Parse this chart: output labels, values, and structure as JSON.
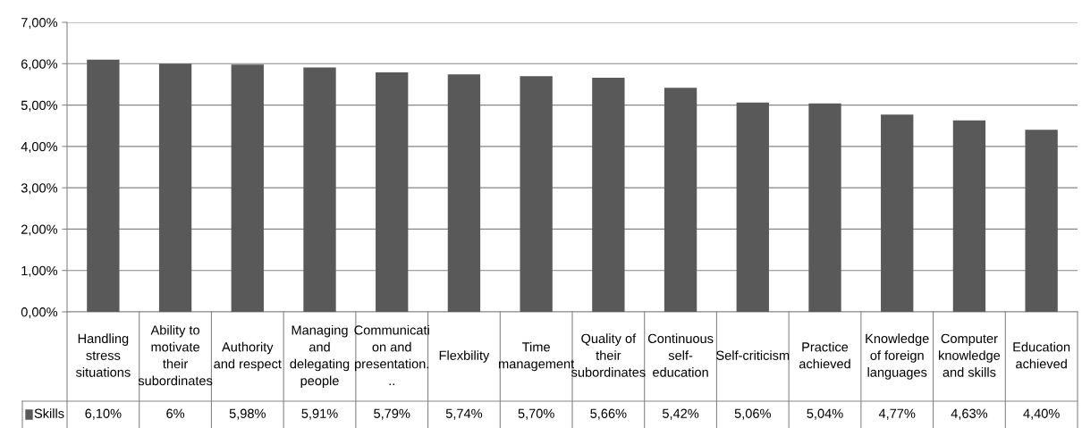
{
  "chart_data": {
    "type": "bar",
    "categories": [
      "Handling\nstress\nsituations",
      "Ability to\nmotivate\ntheir\nsubordinates",
      "Authority\nand respect",
      "Managing\nand\ndelegating\npeople",
      "Communicati\non and\npresentation.\n..",
      "Flexbility",
      "Time\nmanagement",
      "Quality of\ntheir\nsubordinates",
      "Continuous\nself-\neducation",
      "Self-criticism",
      "Practice\nachieved",
      "Knowledge\nof foreign\nlanguages",
      "Computer\nknowledge\nand skills",
      "Education\nachieved"
    ],
    "series": [
      {
        "name": "Skills",
        "color": "#595959",
        "values": [
          6.1,
          6.0,
          5.98,
          5.91,
          5.79,
          5.74,
          5.7,
          5.66,
          5.42,
          5.06,
          5.04,
          4.77,
          4.63,
          4.4
        ],
        "value_labels": [
          "6,10%",
          "6%",
          "5,98%",
          "5,91%",
          "5,79%",
          "5,74%",
          "5,70%",
          "5,66%",
          "5,42%",
          "5,06%",
          "5,04%",
          "4,77%",
          "4,63%",
          "4,40%"
        ]
      }
    ],
    "ylim": [
      0,
      7
    ],
    "yticks": [
      {
        "value": 0,
        "label": "0,00%"
      },
      {
        "value": 1,
        "label": "1,00%"
      },
      {
        "value": 2,
        "label": "2,00%"
      },
      {
        "value": 3,
        "label": "3,00%"
      },
      {
        "value": 4,
        "label": "4,00%"
      },
      {
        "value": 5,
        "label": "5,00%"
      },
      {
        "value": 6,
        "label": "6,00%"
      },
      {
        "value": 7,
        "label": "7,00%"
      }
    ],
    "grid": "y"
  }
}
